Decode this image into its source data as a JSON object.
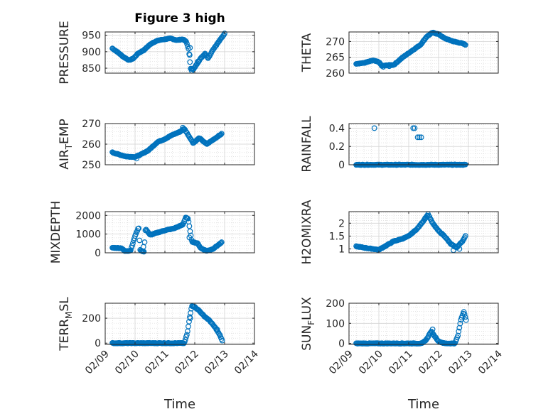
{
  "colors": {
    "marker": "#0072BD",
    "grid": "#D3D3D3",
    "axis": "#262626",
    "background": "#FFFFFF"
  },
  "chart_data": [
    {
      "type": "scatter",
      "title": "Figure 3 high",
      "ylabel": "PRESSURE",
      "ylim": [
        835,
        960
      ],
      "yticks": [
        850,
        900,
        950
      ],
      "ytick_labels": [
        "850",
        "900",
        "950"
      ],
      "xlim": [
        "02/09",
        "02/14"
      ],
      "grid": true,
      "trend": [
        [
          0.24,
          910
        ],
        [
          0.4,
          900
        ],
        [
          0.6,
          885
        ],
        [
          0.8,
          874
        ],
        [
          0.95,
          880
        ],
        [
          1.1,
          895
        ],
        [
          1.3,
          905
        ],
        [
          1.45,
          918
        ],
        [
          1.6,
          928
        ],
        [
          1.8,
          935
        ],
        [
          2.0,
          938
        ],
        [
          2.2,
          940
        ],
        [
          2.4,
          935
        ],
        [
          2.6,
          938
        ],
        [
          2.72,
          930
        ],
        [
          2.8,
          905
        ],
        [
          2.86,
          850
        ],
        [
          2.95,
          845
        ],
        [
          3.05,
          860
        ],
        [
          3.2,
          880
        ],
        [
          3.35,
          895
        ],
        [
          3.45,
          880
        ],
        [
          3.6,
          905
        ],
        [
          3.8,
          930
        ],
        [
          4.0,
          955
        ]
      ],
      "extra": [
        [
          2.83,
          890
        ],
        [
          2.84,
          912
        ],
        [
          2.9,
          842
        ],
        [
          3.1,
          870
        ]
      ]
    },
    {
      "type": "scatter",
      "title": "",
      "ylabel": "THETA",
      "ylim": [
        260,
        273
      ],
      "yticks": [
        260,
        265,
        270
      ],
      "ytick_labels": [
        "260",
        "265",
        "270"
      ],
      "xlim": [
        "02/09",
        "02/14"
      ],
      "grid": true,
      "trend": [
        [
          0.24,
          263
        ],
        [
          0.5,
          263.2
        ],
        [
          0.8,
          264
        ],
        [
          1.0,
          263.5
        ],
        [
          1.1,
          262.3
        ],
        [
          1.3,
          262.5
        ],
        [
          1.5,
          262.6
        ],
        [
          1.8,
          265
        ],
        [
          2.1,
          267
        ],
        [
          2.4,
          269
        ],
        [
          2.6,
          271.5
        ],
        [
          2.8,
          272.8
        ],
        [
          3.0,
          272.3
        ],
        [
          3.2,
          271
        ],
        [
          3.5,
          270
        ],
        [
          3.75,
          269.5
        ],
        [
          3.9,
          269
        ]
      ],
      "extra": [
        [
          1.15,
          262
        ],
        [
          1.35,
          262.2
        ]
      ]
    },
    {
      "type": "scatter",
      "title": "",
      "ylabel": "AIR_TEMP",
      "ylim": [
        250,
        270
      ],
      "yticks": [
        250,
        260,
        270
      ],
      "ytick_labels": [
        "250",
        "260",
        "270"
      ],
      "xlim": [
        "02/09",
        "02/14"
      ],
      "grid": true,
      "trend": [
        [
          0.24,
          256
        ],
        [
          0.45,
          255
        ],
        [
          0.7,
          254
        ],
        [
          1.0,
          253.8
        ],
        [
          1.2,
          255
        ],
        [
          1.45,
          257
        ],
        [
          1.75,
          261
        ],
        [
          2.0,
          262.5
        ],
        [
          2.25,
          264.5
        ],
        [
          2.5,
          266
        ],
        [
          2.65,
          267.5
        ],
        [
          2.8,
          264
        ],
        [
          2.95,
          260.5
        ],
        [
          3.15,
          263
        ],
        [
          3.4,
          260
        ],
        [
          3.6,
          262
        ],
        [
          3.9,
          265
        ]
      ],
      "extra": [
        [
          1.05,
          253
        ],
        [
          2.6,
          268
        ]
      ]
    },
    {
      "type": "scatter",
      "title": "",
      "ylabel": "RAINFALL",
      "ylim": [
        0,
        0.45
      ],
      "yticks": [
        0,
        0.2,
        0.4
      ],
      "ytick_labels": [
        "0",
        "0.2",
        "0.4"
      ],
      "xlim": [
        "02/09",
        "02/14"
      ],
      "grid": true,
      "trend": [
        [
          0.24,
          0
        ],
        [
          3.9,
          0
        ]
      ],
      "extra": [
        [
          0.85,
          0.4
        ],
        [
          2.15,
          0.4
        ],
        [
          2.2,
          0.4
        ],
        [
          2.3,
          0.3
        ],
        [
          2.36,
          0.3
        ],
        [
          2.42,
          0.3
        ]
      ]
    },
    {
      "type": "scatter",
      "title": "",
      "ylabel": "MIXDEPTH",
      "ylim": [
        0,
        2200
      ],
      "yticks": [
        0,
        1000,
        2000
      ],
      "ytick_labels": [
        "0",
        "1000",
        "2000"
      ],
      "xlim": [
        "02/09",
        "02/14"
      ],
      "grid": true,
      "trend": [
        [
          0.24,
          270
        ],
        [
          0.55,
          250
        ],
        [
          0.65,
          90
        ],
        [
          0.85,
          120
        ],
        [
          0.92,
          480
        ],
        [
          1.0,
          900
        ],
        [
          1.08,
          1200
        ],
        [
          1.12,
          1400
        ],
        [
          1.17,
          150
        ],
        [
          1.3,
          50
        ],
        [
          1.35,
          1300
        ],
        [
          1.5,
          950
        ],
        [
          1.7,
          1050
        ],
        [
          2.0,
          1200
        ],
        [
          2.3,
          1300
        ],
        [
          2.6,
          1500
        ],
        [
          2.7,
          1900
        ],
        [
          2.78,
          1800
        ],
        [
          2.9,
          600
        ],
        [
          3.1,
          500
        ],
        [
          3.2,
          250
        ],
        [
          3.4,
          100
        ],
        [
          3.6,
          200
        ],
        [
          3.9,
          550
        ]
      ],
      "extra": [
        [
          1.25,
          80
        ],
        [
          1.28,
          320
        ],
        [
          2.82,
          820
        ]
      ]
    },
    {
      "type": "scatter",
      "title": "",
      "ylabel": "H2OMIXRA",
      "ylim": [
        0.85,
        2.45
      ],
      "yticks": [
        1,
        1.5,
        2
      ],
      "ytick_labels": [
        "1",
        "1.5",
        "2"
      ],
      "xlim": [
        "02/09",
        "02/14"
      ],
      "grid": true,
      "trend": [
        [
          0.24,
          1.1
        ],
        [
          0.5,
          1.05
        ],
        [
          0.8,
          1.0
        ],
        [
          1.0,
          0.97
        ],
        [
          1.2,
          1.1
        ],
        [
          1.5,
          1.3
        ],
        [
          1.8,
          1.4
        ],
        [
          2.0,
          1.5
        ],
        [
          2.3,
          1.8
        ],
        [
          2.5,
          2.1
        ],
        [
          2.65,
          2.35
        ],
        [
          2.8,
          2.0
        ],
        [
          3.0,
          1.7
        ],
        [
          3.2,
          1.5
        ],
        [
          3.4,
          1.2
        ],
        [
          3.6,
          1.05
        ],
        [
          3.8,
          1.3
        ],
        [
          3.9,
          1.5
        ]
      ],
      "extra": [
        [
          2.55,
          2.2
        ],
        [
          3.5,
          0.95
        ],
        [
          3.7,
          1.0
        ]
      ]
    },
    {
      "type": "scatter",
      "title": "",
      "ylabel": "TERR_MSL",
      "ylim": [
        -10,
        320
      ],
      "yticks": [
        0,
        200
      ],
      "ytick_labels": [
        "0",
        "200"
      ],
      "xlim": [
        "02/09",
        "02/14"
      ],
      "grid": true,
      "trend": [
        [
          0.24,
          0
        ],
        [
          2.65,
          0
        ],
        [
          2.75,
          80
        ],
        [
          2.82,
          190
        ],
        [
          2.9,
          300
        ],
        [
          3.0,
          290
        ],
        [
          3.15,
          260
        ],
        [
          3.3,
          220
        ],
        [
          3.5,
          180
        ],
        [
          3.7,
          120
        ],
        [
          3.85,
          60
        ],
        [
          3.92,
          20
        ]
      ],
      "extra": [
        [
          2.85,
          200
        ],
        [
          3.75,
          110
        ]
      ]
    },
    {
      "type": "scatter",
      "title": "",
      "ylabel": "SUN_FLUX",
      "ylim": [
        -5,
        200
      ],
      "yticks": [
        0,
        100,
        200
      ],
      "ytick_labels": [
        "0",
        "100",
        "200"
      ],
      "xlim": [
        "02/09",
        "02/14"
      ],
      "grid": true,
      "trend": [
        [
          0.24,
          0
        ],
        [
          2.45,
          0
        ],
        [
          2.6,
          20
        ],
        [
          2.75,
          60
        ],
        [
          2.85,
          40
        ],
        [
          3.0,
          10
        ],
        [
          3.2,
          0
        ],
        [
          3.55,
          0
        ],
        [
          3.65,
          40
        ],
        [
          3.75,
          120
        ],
        [
          3.85,
          160
        ],
        [
          3.92,
          115
        ]
      ],
      "extra": [
        [
          2.8,
          70
        ]
      ]
    }
  ],
  "x_tick_labels": [
    "02/09",
    "02/10",
    "02/11",
    "02/12",
    "02/13",
    "02/14"
  ],
  "xlabel": "Time"
}
